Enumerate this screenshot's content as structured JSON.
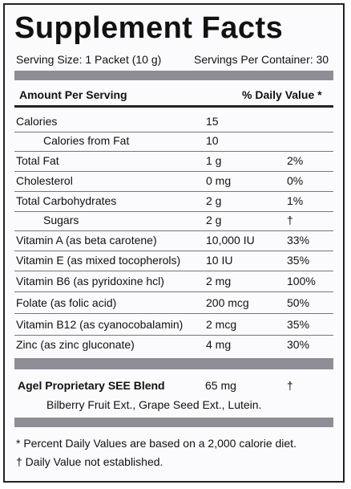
{
  "title": "Supplement Facts",
  "serving_size": "Serving Size: 1 Packet (10 g)",
  "servings_per_container": "Servings Per Container: 30",
  "table": {
    "header": [
      "Amount Per Serving",
      "% Daily Value *"
    ],
    "rows": [
      [
        "Calories",
        "15",
        ""
      ],
      [
        "Calories from Fat",
        "10",
        ""
      ],
      [
        "Total Fat",
        "1 g",
        "2%"
      ],
      [
        "Cholesterol",
        "0 mg",
        "0%"
      ],
      [
        "Total Carbohydrates",
        "2 g",
        "1%"
      ],
      [
        "Sugars",
        "2 g",
        "†"
      ],
      [
        "Vitamin A (as beta carotene)",
        "10,000 IU",
        "33%"
      ],
      [
        "Vitamin E (as mixed tocopherols)",
        "10 IU",
        "35%"
      ],
      [
        "Vitamin B6 (as pyridoxine hcl)",
        "2 mg",
        "100%"
      ],
      [
        "Folate (as folic acid)",
        "200 mcg",
        "50%"
      ],
      [
        "Vitamin B12 (as cyanocobalamin)",
        "2 mcg",
        "35%"
      ],
      [
        "Zinc (as zinc gluconate)",
        "4 mg",
        "30%"
      ]
    ]
  },
  "blend": {
    "name": "Agel Proprietary SEE Blend",
    "amount": "65 mg",
    "daily_value": "†",
    "ingredients": "Bilberry Fruit Ext., Grape Seed Ext., Lutein."
  },
  "footnotes": [
    "* Percent Daily Values are based on a 2,000 calorie diet.",
    "† Daily Value not established."
  ]
}
